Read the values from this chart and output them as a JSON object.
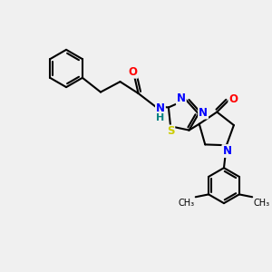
{
  "bg_color": "#f0f0f0",
  "line_color": "#000000",
  "bond_width": 1.5,
  "atom_colors": {
    "N": "#0000ff",
    "O": "#ff0000",
    "S": "#cccc00",
    "H": "#008080",
    "C": "#000000"
  }
}
